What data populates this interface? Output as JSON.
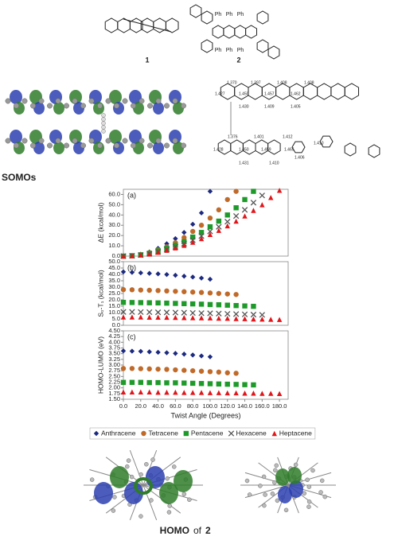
{
  "labels": {
    "compound_1": "1",
    "compound_2": "2",
    "phenyl": [
      "Ph",
      "Ph",
      "Ph",
      "Ph",
      "Ph",
      "Ph"
    ],
    "somos": "SOMOs",
    "homo": "HOMO",
    "homo_of": "of",
    "homo_compound": "2",
    "bond_lengths_top": [
      "1.370",
      "1.397",
      "1.408",
      "1.408",
      "1.427",
      "1.450",
      "1.457",
      "1.462",
      "1.430",
      "1.409",
      "1.405"
    ],
    "bond_lengths_bottom": [
      "1.376",
      "1.401",
      "1.412",
      "1.410",
      "1.428",
      "1.450",
      "1.459",
      "1.465",
      "1.431",
      "1.410",
      "1.406"
    ]
  },
  "chart_data": [
    {
      "type": "scatter",
      "annotation": "(a)",
      "ylabel": "ΔE (kcal/mol)",
      "xlim": [
        0,
        190
      ],
      "ylim": [
        0,
        65
      ],
      "yticks": [
        {
          "value": 0,
          "label": "0.0"
        },
        {
          "value": 10,
          "label": "10.0"
        },
        {
          "value": 20,
          "label": "20.0"
        },
        {
          "value": 30,
          "label": "30.0"
        },
        {
          "value": 40,
          "label": "40.0"
        },
        {
          "value": 50,
          "label": "50.0"
        },
        {
          "value": 60,
          "label": "60.0"
        }
      ],
      "series": [
        {
          "name": "Anthracene",
          "color": "#1c2a80",
          "marker": "diamond",
          "x": [
            0,
            10,
            20,
            30,
            40,
            50,
            60,
            70,
            80,
            90,
            100
          ],
          "values": [
            0,
            0.5,
            1.8,
            4,
            7.5,
            12,
            17,
            23,
            31,
            42,
            63
          ]
        },
        {
          "name": "Tetracene",
          "color": "#c06a2a",
          "marker": "circle",
          "x": [
            0,
            10,
            20,
            30,
            40,
            50,
            60,
            70,
            80,
            90,
            100,
            110,
            120,
            130
          ],
          "values": [
            0,
            0.4,
            1.5,
            3.3,
            6,
            9,
            13,
            18,
            24,
            30,
            37,
            45,
            55,
            63
          ]
        },
        {
          "name": "Pentacene",
          "color": "#1e9a2a",
          "marker": "square",
          "x": [
            0,
            10,
            20,
            30,
            40,
            50,
            60,
            70,
            80,
            90,
            100,
            110,
            120,
            130,
            140,
            150
          ],
          "values": [
            0,
            0.3,
            1.2,
            2.7,
            5,
            7.5,
            10.5,
            14,
            18.5,
            23,
            28.5,
            34,
            40,
            47,
            55,
            63
          ]
        },
        {
          "name": "Hexacene",
          "color": "#555555",
          "marker": "x",
          "x": [
            0,
            10,
            20,
            30,
            40,
            50,
            60,
            70,
            80,
            90,
            100,
            110,
            120,
            130,
            140,
            150,
            160
          ],
          "values": [
            0,
            0.3,
            1,
            2.3,
            4.2,
            6.5,
            9,
            12,
            15.5,
            19.5,
            24,
            28.5,
            33.5,
            39,
            45,
            52,
            59
          ]
        },
        {
          "name": "Heptacene",
          "color": "#e0161b",
          "marker": "triangle",
          "x": [
            0,
            10,
            20,
            30,
            40,
            50,
            60,
            70,
            80,
            90,
            100,
            110,
            120,
            130,
            140,
            150,
            160,
            170,
            180
          ],
          "values": [
            0,
            0.3,
            1,
            2,
            3.7,
            5.7,
            8,
            10.5,
            13.5,
            17,
            21,
            25,
            29.5,
            34,
            39,
            44.5,
            50,
            57,
            64
          ]
        }
      ]
    },
    {
      "type": "scatter",
      "annotation": "(b)",
      "ylabel": "S₀-T₁ (kcal/mol)",
      "xlim": [
        0,
        190
      ],
      "ylim": [
        0,
        50
      ],
      "yticks": [
        {
          "value": 0,
          "label": "0.0"
        },
        {
          "value": 5,
          "label": "5.0"
        },
        {
          "value": 10,
          "label": "10.0"
        },
        {
          "value": 15,
          "label": "15.0"
        },
        {
          "value": 20,
          "label": "20.0"
        },
        {
          "value": 25,
          "label": "25.0"
        },
        {
          "value": 30,
          "label": "30.0"
        },
        {
          "value": 35,
          "label": "35.0"
        },
        {
          "value": 40,
          "label": "40.0"
        },
        {
          "value": 45,
          "label": "45.0"
        },
        {
          "value": 50,
          "label": "50.0"
        }
      ],
      "series": [
        {
          "name": "Anthracene",
          "color": "#1c2a80",
          "marker": "diamond",
          "x": [
            0,
            10,
            20,
            30,
            40,
            50,
            60,
            70,
            80,
            90,
            100
          ],
          "values": [
            42,
            41.6,
            41.2,
            40.8,
            40.4,
            39.9,
            39.3,
            38.6,
            37.9,
            37.1,
            36.2
          ]
        },
        {
          "name": "Tetracene",
          "color": "#c06a2a",
          "marker": "circle",
          "x": [
            0,
            10,
            20,
            30,
            40,
            50,
            60,
            70,
            80,
            90,
            100,
            110,
            120,
            130
          ],
          "values": [
            28,
            27.9,
            27.7,
            27.5,
            27.3,
            27,
            26.7,
            26.4,
            26.1,
            25.8,
            25.4,
            25,
            24.6,
            24.2
          ]
        },
        {
          "name": "Pentacene",
          "color": "#1e9a2a",
          "marker": "square",
          "x": [
            0,
            10,
            20,
            30,
            40,
            50,
            60,
            70,
            80,
            90,
            100,
            110,
            120,
            130,
            140,
            150
          ],
          "values": [
            18,
            17.9,
            17.8,
            17.7,
            17.6,
            17.4,
            17.2,
            17,
            16.8,
            16.6,
            16.3,
            16.1,
            15.8,
            15.5,
            15.2,
            14.9
          ]
        },
        {
          "name": "Hexacene",
          "color": "#555555",
          "marker": "x",
          "x": [
            0,
            10,
            20,
            30,
            40,
            50,
            60,
            70,
            80,
            90,
            100,
            110,
            120,
            130,
            140,
            150,
            160
          ],
          "values": [
            10.5,
            10.5,
            10.4,
            10.3,
            10.2,
            10.1,
            10,
            9.9,
            9.7,
            9.5,
            9.4,
            9.2,
            9,
            8.8,
            8.6,
            8.4,
            8.2
          ]
        },
        {
          "name": "Heptacene",
          "color": "#e0161b",
          "marker": "triangle",
          "x": [
            0,
            10,
            20,
            30,
            40,
            50,
            60,
            70,
            80,
            90,
            100,
            110,
            120,
            130,
            140,
            150,
            160,
            170,
            180
          ],
          "values": [
            6.5,
            6.5,
            6.5,
            6.4,
            6.4,
            6.3,
            6.2,
            6.1,
            6,
            5.9,
            5.8,
            5.6,
            5.5,
            5.3,
            5.2,
            5,
            4.9,
            4.7,
            4.6
          ]
        }
      ]
    },
    {
      "type": "scatter",
      "annotation": "(c)",
      "ylabel": "HOMO-LUMO (eV)",
      "xlabel": "Twist Angle (Degrees)",
      "xlim": [
        0,
        190
      ],
      "ylim": [
        1.5,
        4.5
      ],
      "xticks": [
        {
          "value": 0,
          "label": "0.0"
        },
        {
          "value": 20,
          "label": "20.0"
        },
        {
          "value": 40,
          "label": "40.0"
        },
        {
          "value": 60,
          "label": "60.0"
        },
        {
          "value": 80,
          "label": "80.0"
        },
        {
          "value": 100,
          "label": "100.0"
        },
        {
          "value": 120,
          "label": "120.0"
        },
        {
          "value": 140,
          "label": "140.0"
        },
        {
          "value": 160,
          "label": "160.0"
        },
        {
          "value": 180,
          "label": "180.0"
        }
      ],
      "yticks": [
        {
          "value": 1.5,
          "label": "1.50"
        },
        {
          "value": 1.75,
          "label": "1.75"
        },
        {
          "value": 2,
          "label": "2.00"
        },
        {
          "value": 2.25,
          "label": "2.25"
        },
        {
          "value": 2.5,
          "label": "2.50"
        },
        {
          "value": 2.75,
          "label": "2.75"
        },
        {
          "value": 3,
          "label": "3.00"
        },
        {
          "value": 3.25,
          "label": "3.25"
        },
        {
          "value": 3.5,
          "label": "3.50"
        },
        {
          "value": 3.75,
          "label": "3.75"
        },
        {
          "value": 4,
          "label": "4.00"
        },
        {
          "value": 4.25,
          "label": "4.25"
        },
        {
          "value": 4.5,
          "label": "4.50"
        }
      ],
      "series": [
        {
          "name": "Anthracene",
          "color": "#1c2a80",
          "marker": "diamond",
          "x": [
            0,
            10,
            20,
            30,
            40,
            50,
            60,
            70,
            80,
            90,
            100
          ],
          "values": [
            3.62,
            3.61,
            3.6,
            3.58,
            3.56,
            3.54,
            3.51,
            3.48,
            3.44,
            3.4,
            3.36
          ]
        },
        {
          "name": "Tetracene",
          "color": "#c06a2a",
          "marker": "circle",
          "x": [
            0,
            10,
            20,
            30,
            40,
            50,
            60,
            70,
            80,
            90,
            100,
            110,
            120,
            130
          ],
          "values": [
            2.85,
            2.85,
            2.84,
            2.83,
            2.82,
            2.81,
            2.79,
            2.77,
            2.75,
            2.73,
            2.71,
            2.69,
            2.66,
            2.64
          ]
        },
        {
          "name": "Pentacene",
          "color": "#1e9a2a",
          "marker": "square",
          "x": [
            0,
            10,
            20,
            30,
            40,
            50,
            60,
            70,
            80,
            90,
            100,
            110,
            120,
            130,
            140,
            150
          ],
          "values": [
            2.24,
            2.24,
            2.24,
            2.23,
            2.23,
            2.22,
            2.22,
            2.21,
            2.2,
            2.19,
            2.18,
            2.17,
            2.16,
            2.15,
            2.14,
            2.13
          ]
        },
        {
          "name": "Heptacene",
          "color": "#e0161b",
          "marker": "triangle",
          "x": [
            0,
            10,
            20,
            30,
            40,
            50,
            60,
            70,
            80,
            90,
            100,
            110,
            120,
            130,
            140,
            150,
            160,
            170,
            180
          ],
          "values": [
            1.82,
            1.82,
            1.82,
            1.82,
            1.81,
            1.81,
            1.81,
            1.8,
            1.8,
            1.8,
            1.79,
            1.79,
            1.78,
            1.78,
            1.77,
            1.77,
            1.76,
            1.76,
            1.75
          ]
        }
      ]
    }
  ]
}
